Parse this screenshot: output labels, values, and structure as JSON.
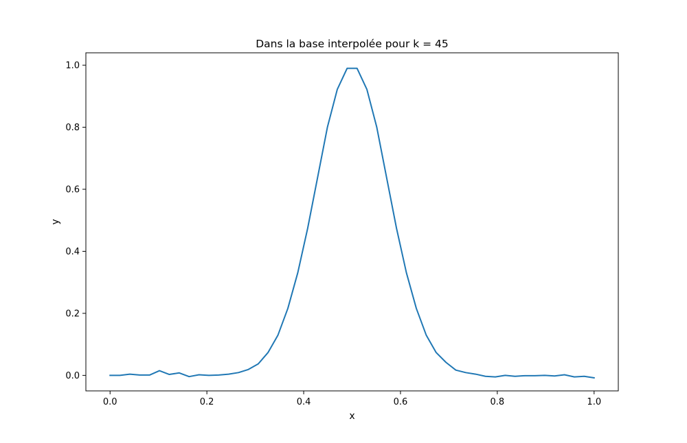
{
  "chart_data": {
    "type": "line",
    "title": "Dans la base interpolée pour k = 45",
    "xlabel": "x",
    "ylabel": "y",
    "xlim": [
      -0.05,
      1.05
    ],
    "ylim": [
      -0.05,
      1.04
    ],
    "xticks": [
      0.0,
      0.2,
      0.4,
      0.6,
      0.8,
      1.0
    ],
    "xtick_labels": [
      "0.0",
      "0.2",
      "0.4",
      "0.6",
      "0.8",
      "1.0"
    ],
    "yticks": [
      0.0,
      0.2,
      0.4,
      0.6,
      0.8,
      1.0
    ],
    "ytick_labels": [
      "0.0",
      "0.2",
      "0.4",
      "0.6",
      "0.8",
      "1.0"
    ],
    "grid": false,
    "legend": "none",
    "line_color": "#1f77b4",
    "series": [
      {
        "x": [
          0.0,
          0.0204,
          0.0408,
          0.0612,
          0.0816,
          0.102,
          0.1224,
          0.1429,
          0.1633,
          0.1837,
          0.2041,
          0.2245,
          0.2449,
          0.2653,
          0.2857,
          0.3061,
          0.3265,
          0.3469,
          0.3673,
          0.3878,
          0.4082,
          0.4286,
          0.449,
          0.4694,
          0.4898,
          0.5102,
          0.5306,
          0.551,
          0.5714,
          0.5918,
          0.6122,
          0.6327,
          0.6531,
          0.6735,
          0.6939,
          0.7143,
          0.7347,
          0.7551,
          0.7755,
          0.7959,
          0.8163,
          0.8367,
          0.8571,
          0.8776,
          0.898,
          0.9184,
          0.9388,
          0.9592,
          0.9796,
          1.0
        ],
        "y": [
          0.0,
          0.0,
          0.004,
          0.001,
          0.001,
          0.015,
          0.003,
          0.008,
          -0.004,
          0.002,
          0.0,
          0.001,
          0.004,
          0.009,
          0.019,
          0.037,
          0.074,
          0.13,
          0.216,
          0.331,
          0.474,
          0.637,
          0.8,
          0.922,
          0.99,
          0.99,
          0.922,
          0.8,
          0.637,
          0.474,
          0.331,
          0.216,
          0.13,
          0.074,
          0.042,
          0.017,
          0.009,
          0.004,
          -0.003,
          -0.005,
          0.0,
          -0.003,
          -0.001,
          -0.001,
          0.0,
          -0.002,
          0.002,
          -0.005,
          -0.003,
          -0.008
        ]
      }
    ]
  }
}
